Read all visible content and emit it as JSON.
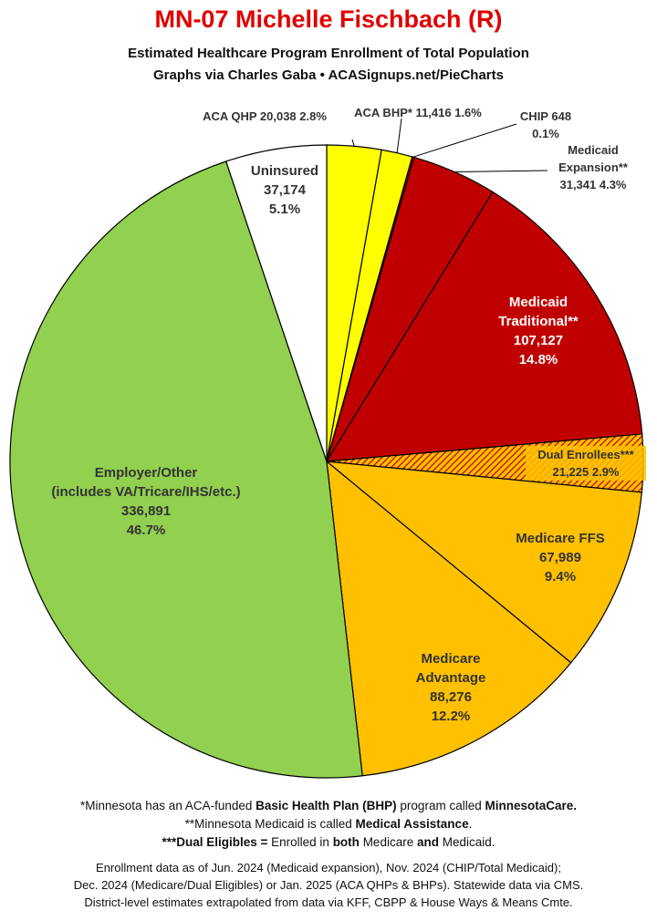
{
  "header": {
    "title": "MN-07 Michelle Fischbach (R)",
    "subtitle1": "Estimated Healthcare Program Enrollment of Total Population",
    "subtitle2": "Graphs via Charles Gaba  •  ACASignups.net/PieCharts"
  },
  "chart_data": {
    "type": "pie",
    "title": "MN-07 Michelle Fischbach (R)",
    "start_angle_deg": 0,
    "direction": "clockwise",
    "slices": [
      {
        "label": "ACA QHP",
        "value": 20038,
        "percent": "2.8%",
        "color": "#ffff00",
        "text": [
          "ACA QHP 20,038 2.8%"
        ],
        "text_color": "#333333"
      },
      {
        "label": "ACA BHP*",
        "value": 11416,
        "percent": "1.6%",
        "color": "#ffff00",
        "text": [
          "ACA BHP* 11,416 1.6%"
        ],
        "text_color": "#333333"
      },
      {
        "label": "CHIP",
        "value": 648,
        "percent": "0.1%",
        "color": "#c00000",
        "text": [
          "CHIP 648",
          "0.1%"
        ],
        "text_color": "#333333"
      },
      {
        "label": "Medicaid Expansion**",
        "value": 31341,
        "percent": "4.3%",
        "color": "#c00000",
        "text": [
          "Medicaid",
          "Expansion**",
          "31,341 4.3%"
        ],
        "text_color": "#333333"
      },
      {
        "label": "Medicaid Traditional**",
        "value": 107127,
        "percent": "14.8%",
        "color": "#c00000",
        "text": [
          "Medicaid",
          "Traditional**",
          "107,127",
          "14.8%"
        ],
        "text_color": "#ffffff"
      },
      {
        "label": "Dual Enrollees***",
        "value": 21225,
        "percent": "2.9%",
        "color": "#ffc000",
        "pattern": "hatch-red",
        "text": [
          "Dual Enrollees***",
          "21,225 2.9%"
        ],
        "text_color": "#333333"
      },
      {
        "label": "Medicare FFS",
        "value": 67989,
        "percent": "9.4%",
        "color": "#ffc000",
        "text": [
          "Medicare FFS",
          "67,989",
          "9.4%"
        ],
        "text_color": "#333333"
      },
      {
        "label": "Medicare Advantage",
        "value": 88276,
        "percent": "12.2%",
        "color": "#ffc000",
        "text": [
          "Medicare",
          "Advantage",
          "88,276",
          "12.2%"
        ],
        "text_color": "#333333"
      },
      {
        "label": "Employer/Other",
        "value": 336891,
        "percent": "46.7%",
        "color": "#92d050",
        "text": [
          "Employer/Other",
          "(includes VA/Tricare/IHS/etc.)",
          "336,891",
          "46.7%"
        ],
        "text_color": "#333333"
      },
      {
        "label": "Uninsured",
        "value": 37174,
        "percent": "5.1%",
        "color": "#ffffff",
        "text": [
          "Uninsured",
          "37,174",
          "5.1%"
        ],
        "text_color": "#333333"
      }
    ]
  },
  "footnotes": {
    "line1_a": "*Minnesota has an ACA-funded ",
    "line1_b": "Basic Health Plan (BHP)",
    "line1_c": " program called ",
    "line1_d": "MinnesotaCare.",
    "line2_a": "**Minnesota Medicaid is called ",
    "line2_b": "Medical Assistance",
    "line2_c": ".",
    "line3_a": "***Dual Eligibles =",
    "line3_b": " Enrolled in ",
    "line3_c": "both",
    "line3_d": " Medicare ",
    "line3_e": "and",
    "line3_f": " Medicaid."
  },
  "sources": {
    "line1": "Enrollment data as of Jun. 2024 (Medicaid expansion), Nov. 2024 (CHIP/Total Medicaid);",
    "line2": "Dec. 2024 (Medicare/Dual Eligibles) or Jan. 2025 (ACA QHPs & BHPs). Statewide data via CMS.",
    "line3": "District-level estimates extrapolated from data via KFF, CBPP & House Ways & Means Cmte."
  }
}
